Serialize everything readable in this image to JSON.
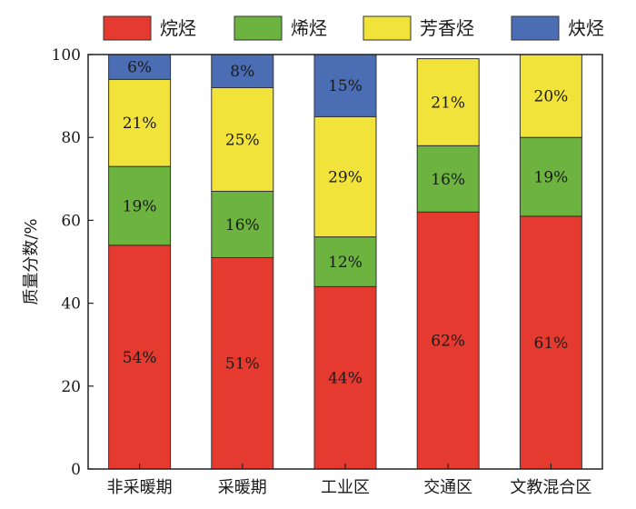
{
  "chart_data": {
    "type": "bar",
    "stacked": true,
    "title": "",
    "xlabel": "",
    "ylabel": "质量分数/%",
    "ylim": [
      0,
      100
    ],
    "yticks": [
      0,
      20,
      40,
      60,
      80,
      100
    ],
    "categories": [
      "非采暖期",
      "采暖期",
      "工业区",
      "交通区",
      "文教混合区"
    ],
    "legend_position": "top",
    "grid": false,
    "series": [
      {
        "name": "烷烃",
        "color": "#e53a30",
        "values": [
          54,
          51,
          44,
          62,
          61
        ],
        "labels": [
          "54%",
          "51%",
          "44%",
          "62%",
          "61%"
        ]
      },
      {
        "name": "烯烃",
        "color": "#6db33f",
        "values": [
          19,
          16,
          12,
          16,
          19
        ],
        "labels": [
          "19%",
          "16%",
          "12%",
          "16%",
          "19%"
        ]
      },
      {
        "name": "芳香烃",
        "color": "#f2e33a",
        "values": [
          21,
          25,
          29,
          21,
          20
        ],
        "labels": [
          "21%",
          "25%",
          "29%",
          "21%",
          "20%"
        ]
      },
      {
        "name": "炔烃",
        "color": "#4a6db3",
        "values": [
          6,
          8,
          15,
          0,
          0
        ],
        "labels": [
          "6%",
          "8%",
          "15%",
          "",
          ""
        ]
      }
    ]
  }
}
